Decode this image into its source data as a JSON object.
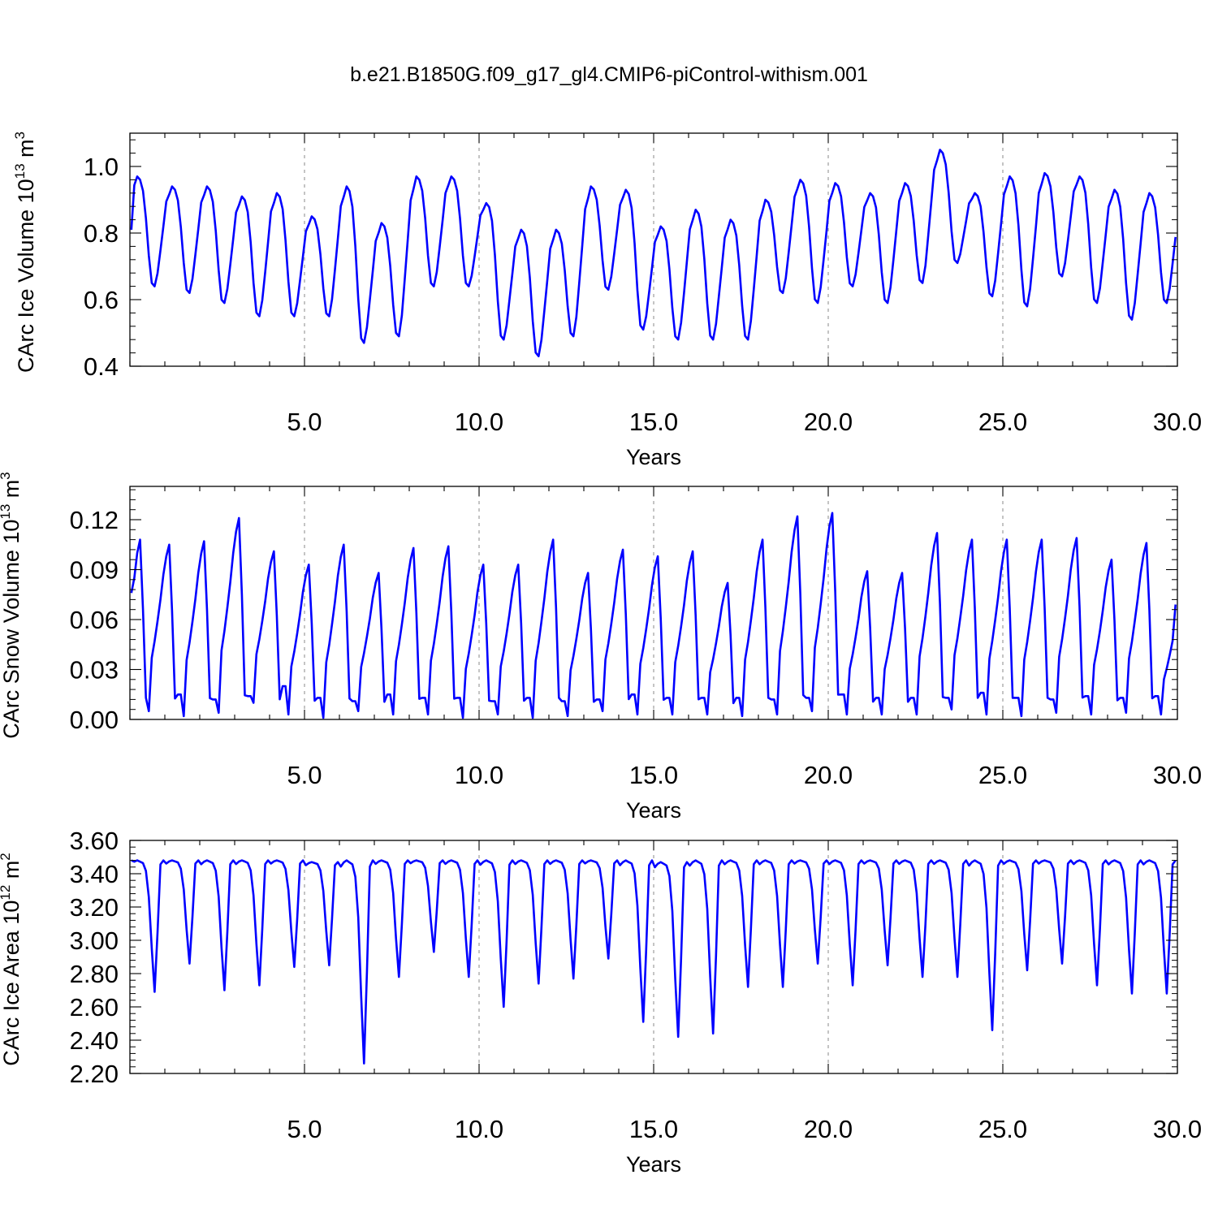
{
  "title": "b.e21.B1850G.f09_g17_gl4.CMIP6-piControl-withism.001",
  "colors": {
    "series": "#0000ff",
    "axis": "#000000",
    "gridline": "#888888"
  },
  "x_start": 0.0417,
  "x_step": 0.0833,
  "chart_data": [
    {
      "type": "line",
      "xlabel": "Years",
      "ylabel": "CArc Ice Volume 10",
      "ylabel_exp": "13",
      "ylabel_unit": " m",
      "ylabel_unit_exp": "3",
      "xlim": [
        0.0,
        30.0
      ],
      "ylim": [
        0.4,
        1.1
      ],
      "x_ticks": [
        5.0,
        10.0,
        15.0,
        20.0,
        25.0,
        30.0
      ],
      "x_tick_labels": [
        "5.0",
        "10.0",
        "15.0",
        "20.0",
        "25.0",
        "30.0"
      ],
      "y_ticks": [
        0.4,
        0.6,
        0.8,
        1.0
      ],
      "y_tick_labels": [
        "0.4",
        "0.6",
        "0.8",
        "1.0"
      ],
      "grid": "vertical dashed at x tick marks",
      "peaks": [
        0.97,
        0.94,
        0.94,
        0.91,
        0.92,
        0.85,
        0.94,
        0.83,
        0.97,
        0.97,
        0.89,
        0.81,
        0.81,
        0.94,
        0.93,
        0.82,
        0.87,
        0.84,
        0.9,
        0.96,
        0.95,
        0.92,
        0.95,
        1.05,
        0.92,
        0.97,
        0.98,
        0.97,
        0.93,
        0.92
      ],
      "troughs": [
        0.64,
        0.62,
        0.59,
        0.55,
        0.55,
        0.55,
        0.47,
        0.49,
        0.64,
        0.64,
        0.48,
        0.43,
        0.49,
        0.63,
        0.51,
        0.48,
        0.48,
        0.48,
        0.62,
        0.59,
        0.64,
        0.59,
        0.65,
        0.71,
        0.61,
        0.58,
        0.67,
        0.59,
        0.54,
        0.59
      ]
    },
    {
      "type": "line",
      "xlabel": "Years",
      "ylabel": "CArc Snow Volume 10",
      "ylabel_exp": "13",
      "ylabel_unit": " m",
      "ylabel_unit_exp": "3",
      "xlim": [
        0.0,
        30.0
      ],
      "ylim": [
        0.0,
        0.14
      ],
      "x_ticks": [
        5.0,
        10.0,
        15.0,
        20.0,
        25.0,
        30.0
      ],
      "x_tick_labels": [
        "5.0",
        "10.0",
        "15.0",
        "20.0",
        "25.0",
        "30.0"
      ],
      "y_ticks": [
        0.0,
        0.03,
        0.06,
        0.09,
        0.12
      ],
      "y_tick_labels": [
        "0.00",
        "0.03",
        "0.06",
        "0.09",
        "0.12"
      ],
      "grid": "vertical dashed at x tick marks",
      "peaks": [
        0.108,
        0.105,
        0.107,
        0.121,
        0.101,
        0.093,
        0.105,
        0.088,
        0.103,
        0.104,
        0.093,
        0.093,
        0.108,
        0.088,
        0.102,
        0.098,
        0.101,
        0.082,
        0.108,
        0.122,
        0.124,
        0.089,
        0.088,
        0.112,
        0.108,
        0.108,
        0.108,
        0.109,
        0.096,
        0.106
      ],
      "troughs": [
        0.005,
        0.002,
        0.004,
        0.01,
        0.003,
        0.001,
        0.005,
        0.003,
        0.003,
        0.001,
        0.003,
        0.001,
        0.002,
        0.005,
        0.003,
        0.003,
        0.003,
        0.002,
        0.003,
        0.005,
        0.003,
        0.003,
        0.003,
        0.006,
        0.003,
        0.002,
        0.004,
        0.003,
        0.004,
        0.003
      ]
    },
    {
      "type": "line",
      "xlabel": "Years",
      "ylabel": "CArc Ice Area 10",
      "ylabel_exp": "12",
      "ylabel_unit": " m",
      "ylabel_unit_exp": "2",
      "xlim": [
        0.0,
        30.0
      ],
      "ylim": [
        2.2,
        3.6
      ],
      "x_ticks": [
        5.0,
        10.0,
        15.0,
        20.0,
        25.0,
        30.0
      ],
      "x_tick_labels": [
        "5.0",
        "10.0",
        "15.0",
        "20.0",
        "25.0",
        "30.0"
      ],
      "y_ticks": [
        2.2,
        2.4,
        2.6,
        2.8,
        3.0,
        3.2,
        3.4,
        3.6
      ],
      "y_tick_labels": [
        "2.20",
        "2.40",
        "2.60",
        "2.80",
        "3.00",
        "3.20",
        "3.40",
        "3.60"
      ],
      "grid": "vertical dashed at x tick marks",
      "max_values": [
        3.48,
        3.48,
        3.48,
        3.48,
        3.48,
        3.47,
        3.48,
        3.48,
        3.48,
        3.48,
        3.48,
        3.48,
        3.48,
        3.48,
        3.48,
        3.47,
        3.48,
        3.48,
        3.48,
        3.48,
        3.48,
        3.48,
        3.48,
        3.48,
        3.48,
        3.48,
        3.48,
        3.48,
        3.48,
        3.48
      ],
      "min_values": [
        2.69,
        2.86,
        2.7,
        2.73,
        2.84,
        2.85,
        2.26,
        2.78,
        2.93,
        2.78,
        2.6,
        2.74,
        2.77,
        2.89,
        2.51,
        2.42,
        2.44,
        2.72,
        2.72,
        2.86,
        2.73,
        2.85,
        2.78,
        2.78,
        2.46,
        2.82,
        2.86,
        2.73,
        2.68,
        2.68
      ]
    }
  ]
}
